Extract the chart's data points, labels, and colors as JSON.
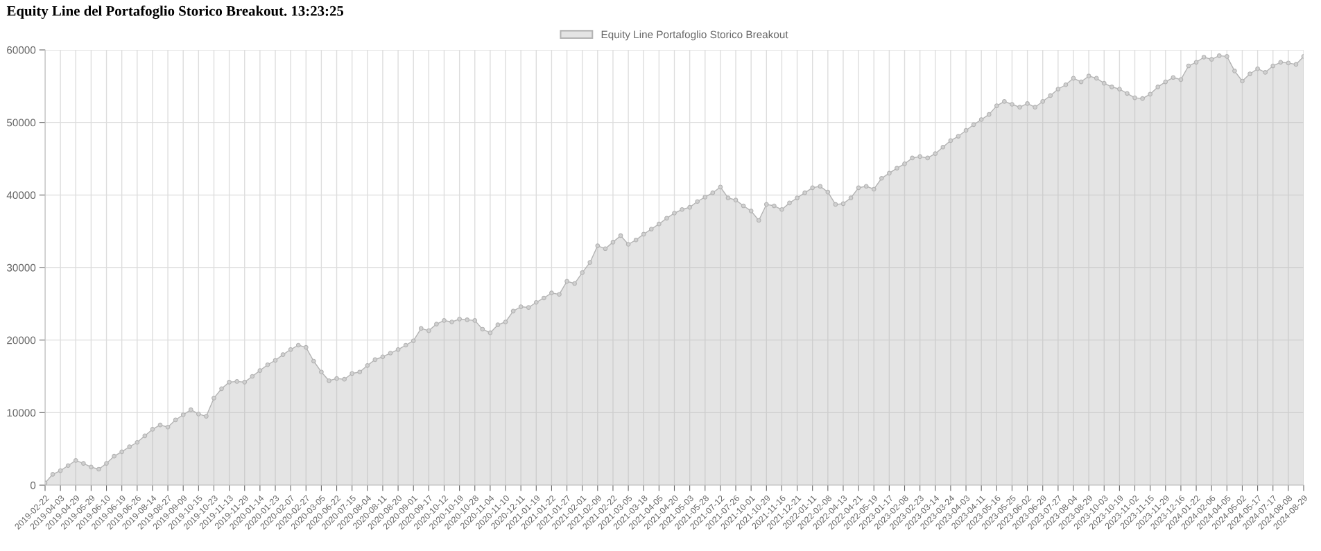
{
  "chart_data": {
    "type": "area",
    "title": "Equity Line del Portafoglio Storico Breakout. 13:23:25",
    "categories": [
      "2019-02-22",
      null,
      "2019-04-03",
      null,
      "2019-04-29",
      null,
      "2019-05-29",
      null,
      "2019-06-10",
      null,
      "2019-06-19",
      null,
      "2019-06-26",
      null,
      "2019-08-14",
      null,
      "2019-08-27",
      null,
      "2019-09-09",
      null,
      "2019-10-15",
      null,
      "2019-10-23",
      null,
      "2019-11-13",
      null,
      "2019-11-29",
      null,
      "2020-01-14",
      null,
      "2020-01-23",
      null,
      "2020-02-07",
      null,
      "2020-02-27",
      null,
      "2020-03-05",
      null,
      "2020-06-22",
      null,
      "2020-07-15",
      null,
      "2020-08-04",
      null,
      "2020-08-11",
      null,
      "2020-08-20",
      null,
      "2020-09-01",
      null,
      "2020-09-17",
      null,
      "2020-10-12",
      null,
      "2020-10-19",
      null,
      "2020-10-28",
      null,
      "2020-11-04",
      null,
      "2020-11-10",
      null,
      "2020-12-11",
      null,
      "2021-01-19",
      null,
      "2021-01-22",
      null,
      "2021-01-27",
      null,
      "2021-02-01",
      null,
      "2021-02-09",
      null,
      "2021-02-22",
      null,
      "2021-03-05",
      null,
      "2021-03-18",
      null,
      "2021-04-05",
      null,
      "2021-04-20",
      null,
      "2021-05-03",
      null,
      "2021-05-28",
      null,
      "2021-07-12",
      null,
      "2021-07-26",
      null,
      "2021-10-01",
      null,
      "2021-10-29",
      null,
      "2021-11-16",
      null,
      "2021-12-21",
      null,
      "2022-01-11",
      null,
      "2022-02-08",
      null,
      "2022-04-13",
      null,
      "2022-04-21",
      null,
      "2022-05-19",
      null,
      "2023-01-17",
      null,
      "2023-02-08",
      null,
      "2023-02-23",
      null,
      "2023-03-14",
      null,
      "2023-03-24",
      null,
      "2023-04-03",
      null,
      "2023-04-11",
      null,
      "2023-05-16",
      null,
      "2023-05-25",
      null,
      "2023-06-02",
      null,
      "2023-06-29",
      null,
      "2023-07-27",
      null,
      "2023-08-04",
      null,
      "2023-08-29",
      null,
      "2023-10-03",
      null,
      "2023-10-19",
      null,
      "2023-11-02",
      null,
      "2023-11-15",
      null,
      "2023-11-29",
      null,
      "2023-12-16",
      null,
      "2024-01-22",
      null,
      "2024-02-06",
      null,
      "2024-04-05",
      null,
      "2024-05-02",
      null,
      "2024-05-17",
      null,
      "2024-07-17",
      null,
      "2024-08-08",
      null,
      "2024-08-29"
    ],
    "series": [
      {
        "name": "Equity Line Portafoglio Storico Breakout",
        "color": "#b3b3b3",
        "values": [
          300,
          1500,
          2000,
          2700,
          3400,
          3000,
          2500,
          2200,
          3000,
          4000,
          4600,
          5300,
          5900,
          6800,
          7700,
          8300,
          8000,
          9000,
          9700,
          10400,
          9800,
          9500,
          12000,
          13300,
          14200,
          14300,
          14200,
          15000,
          15800,
          16600,
          17200,
          18000,
          18700,
          19300,
          19000,
          17100,
          15600,
          14400,
          14700,
          14600,
          15400,
          15600,
          16500,
          17300,
          17700,
          18200,
          18700,
          19300,
          19900,
          21600,
          21300,
          22200,
          22700,
          22500,
          22900,
          22800,
          22700,
          21500,
          21000,
          22100,
          22500,
          24000,
          24600,
          24500,
          25200,
          25800,
          26500,
          26300,
          28100,
          27800,
          29300,
          30700,
          33000,
          32600,
          33500,
          34400,
          33200,
          33800,
          34600,
          35300,
          36000,
          36800,
          37500,
          38000,
          38300,
          39100,
          39700,
          40300,
          41100,
          39600,
          39300,
          38500,
          37800,
          36500,
          38700,
          38500,
          38000,
          38900,
          39600,
          40300,
          41000,
          41200,
          40400,
          38700,
          38800,
          39600,
          41000,
          41200,
          40800,
          42300,
          43000,
          43700,
          44300,
          45100,
          45300,
          45100,
          45700,
          46600,
          47500,
          48100,
          48900,
          49700,
          50400,
          51100,
          52300,
          52900,
          52500,
          52100,
          52600,
          52100,
          52900,
          53700,
          54600,
          55200,
          56100,
          55600,
          56400,
          56100,
          55400,
          54900,
          54600,
          54000,
          53400,
          53300,
          53900,
          54900,
          55600,
          56200,
          55900,
          57800,
          58300,
          59000,
          58700,
          59200,
          59100,
          57100,
          55700,
          56700,
          57400,
          56900,
          57800,
          58300,
          58200,
          58000,
          59100
        ]
      }
    ],
    "ylim": [
      0,
      60000
    ],
    "yticks": [
      0,
      10000,
      20000,
      30000,
      40000,
      50000,
      60000
    ],
    "grid": true,
    "legend": "top",
    "marker": "circle",
    "line_style": "solid"
  }
}
